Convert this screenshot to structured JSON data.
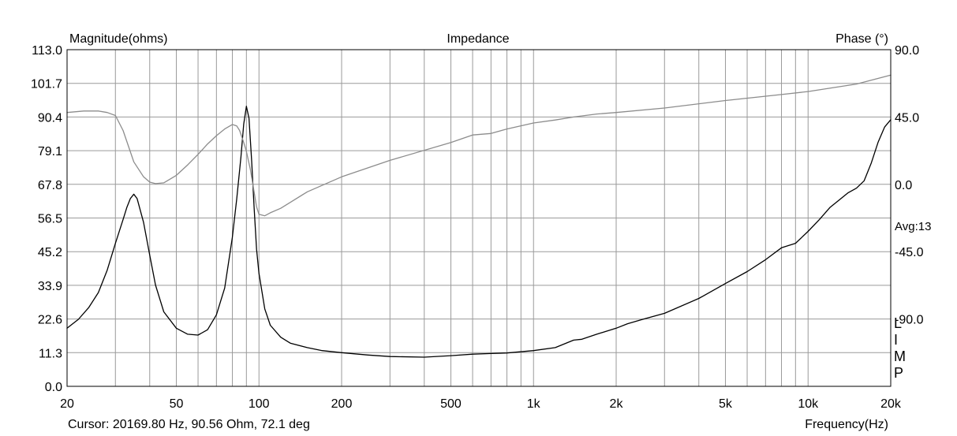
{
  "chart_data": {
    "type": "line",
    "title": "Impedance",
    "ylabel": "Magnitude(ohms)",
    "y2label": "Phase (°)",
    "xlabel": "Frequency(Hz)",
    "xscale": "log",
    "xlim": [
      20,
      20000
    ],
    "ylim": [
      0,
      113
    ],
    "y2lim": [
      -135,
      90
    ],
    "grid": true,
    "x_ticks": [
      {
        "value": 20,
        "label": "20"
      },
      {
        "value": 50,
        "label": "50"
      },
      {
        "value": 100,
        "label": "100"
      },
      {
        "value": 200,
        "label": "200"
      },
      {
        "value": 500,
        "label": "500"
      },
      {
        "value": 1000,
        "label": "1k"
      },
      {
        "value": 2000,
        "label": "2k"
      },
      {
        "value": 5000,
        "label": "5k"
      },
      {
        "value": 10000,
        "label": "10k"
      },
      {
        "value": 20000,
        "label": "20k"
      }
    ],
    "y_ticks": [
      "0.0",
      "11.3",
      "22.6",
      "33.9",
      "45.2",
      "56.5",
      "67.8",
      "79.1",
      "90.4",
      "101.7",
      "113.0"
    ],
    "y2_ticks": [
      "90.0",
      "45.0",
      "0.0",
      "-45.0",
      "-90.0"
    ],
    "avg_label": "Avg:13",
    "side_label": [
      "L",
      "I",
      "M",
      "P"
    ],
    "cursor_text": "Cursor: 20169.80 Hz, 90.56 Ohm, 72.1 deg",
    "series": [
      {
        "axis": "left",
        "color": "#000000",
        "x": [
          20,
          22,
          24,
          26,
          28,
          30,
          32,
          33,
          34,
          35,
          36,
          38,
          40,
          42,
          45,
          50,
          55,
          60,
          65,
          70,
          75,
          80,
          83,
          86,
          88,
          90,
          92,
          94,
          96,
          98,
          100,
          105,
          110,
          120,
          130,
          150,
          170,
          200,
          250,
          300,
          400,
          500,
          600,
          700,
          800,
          1000,
          1200,
          1400,
          1500,
          1700,
          2000,
          2200,
          2500,
          3000,
          4000,
          5000,
          6000,
          7000,
          8000,
          9000,
          10000,
          11000,
          12000,
          14000,
          15000,
          16000,
          17000,
          18000,
          19000,
          20000
        ],
        "y": [
          19.5,
          22.5,
          26.5,
          31.5,
          39,
          48,
          56,
          60,
          63,
          64.5,
          63,
          55,
          44,
          34,
          25,
          19.5,
          17.5,
          17.2,
          19,
          24,
          33,
          50,
          63,
          77,
          88,
          94,
          90,
          76,
          60,
          46,
          38,
          26,
          20.5,
          16.5,
          14.5,
          13,
          12,
          11.3,
          10.5,
          10,
          9.8,
          10.3,
          10.8,
          11,
          11.2,
          12,
          13,
          15.5,
          15.8,
          17.5,
          19.5,
          21,
          22.5,
          24.5,
          29.5,
          34.5,
          38.5,
          42.5,
          46.5,
          48,
          52,
          56,
          60,
          65,
          66.5,
          69,
          75,
          82,
          87,
          89.5
        ]
      },
      {
        "axis": "right",
        "color": "#8c8c8c",
        "x": [
          20,
          23,
          26,
          28,
          30,
          32,
          35,
          38,
          40,
          42,
          45,
          50,
          55,
          60,
          65,
          70,
          75,
          80,
          83,
          85,
          88,
          90,
          93,
          95,
          98,
          100,
          105,
          110,
          120,
          150,
          200,
          300,
          500,
          600,
          700,
          800,
          1000,
          1200,
          1400,
          1700,
          2000,
          3000,
          5000,
          8000,
          10000,
          15000,
          20000
        ],
        "y": [
          48,
          49,
          49,
          48,
          46,
          36,
          15,
          5,
          1.5,
          0.5,
          1,
          6,
          13,
          20,
          27,
          32.5,
          37,
          40,
          39,
          36,
          28,
          22,
          10,
          0,
          -15,
          -20,
          -21,
          -19,
          -16,
          -5,
          5,
          16,
          28,
          33,
          34,
          37,
          41,
          43,
          45,
          47,
          48,
          51,
          56,
          60,
          62,
          67,
          73
        ]
      }
    ]
  }
}
